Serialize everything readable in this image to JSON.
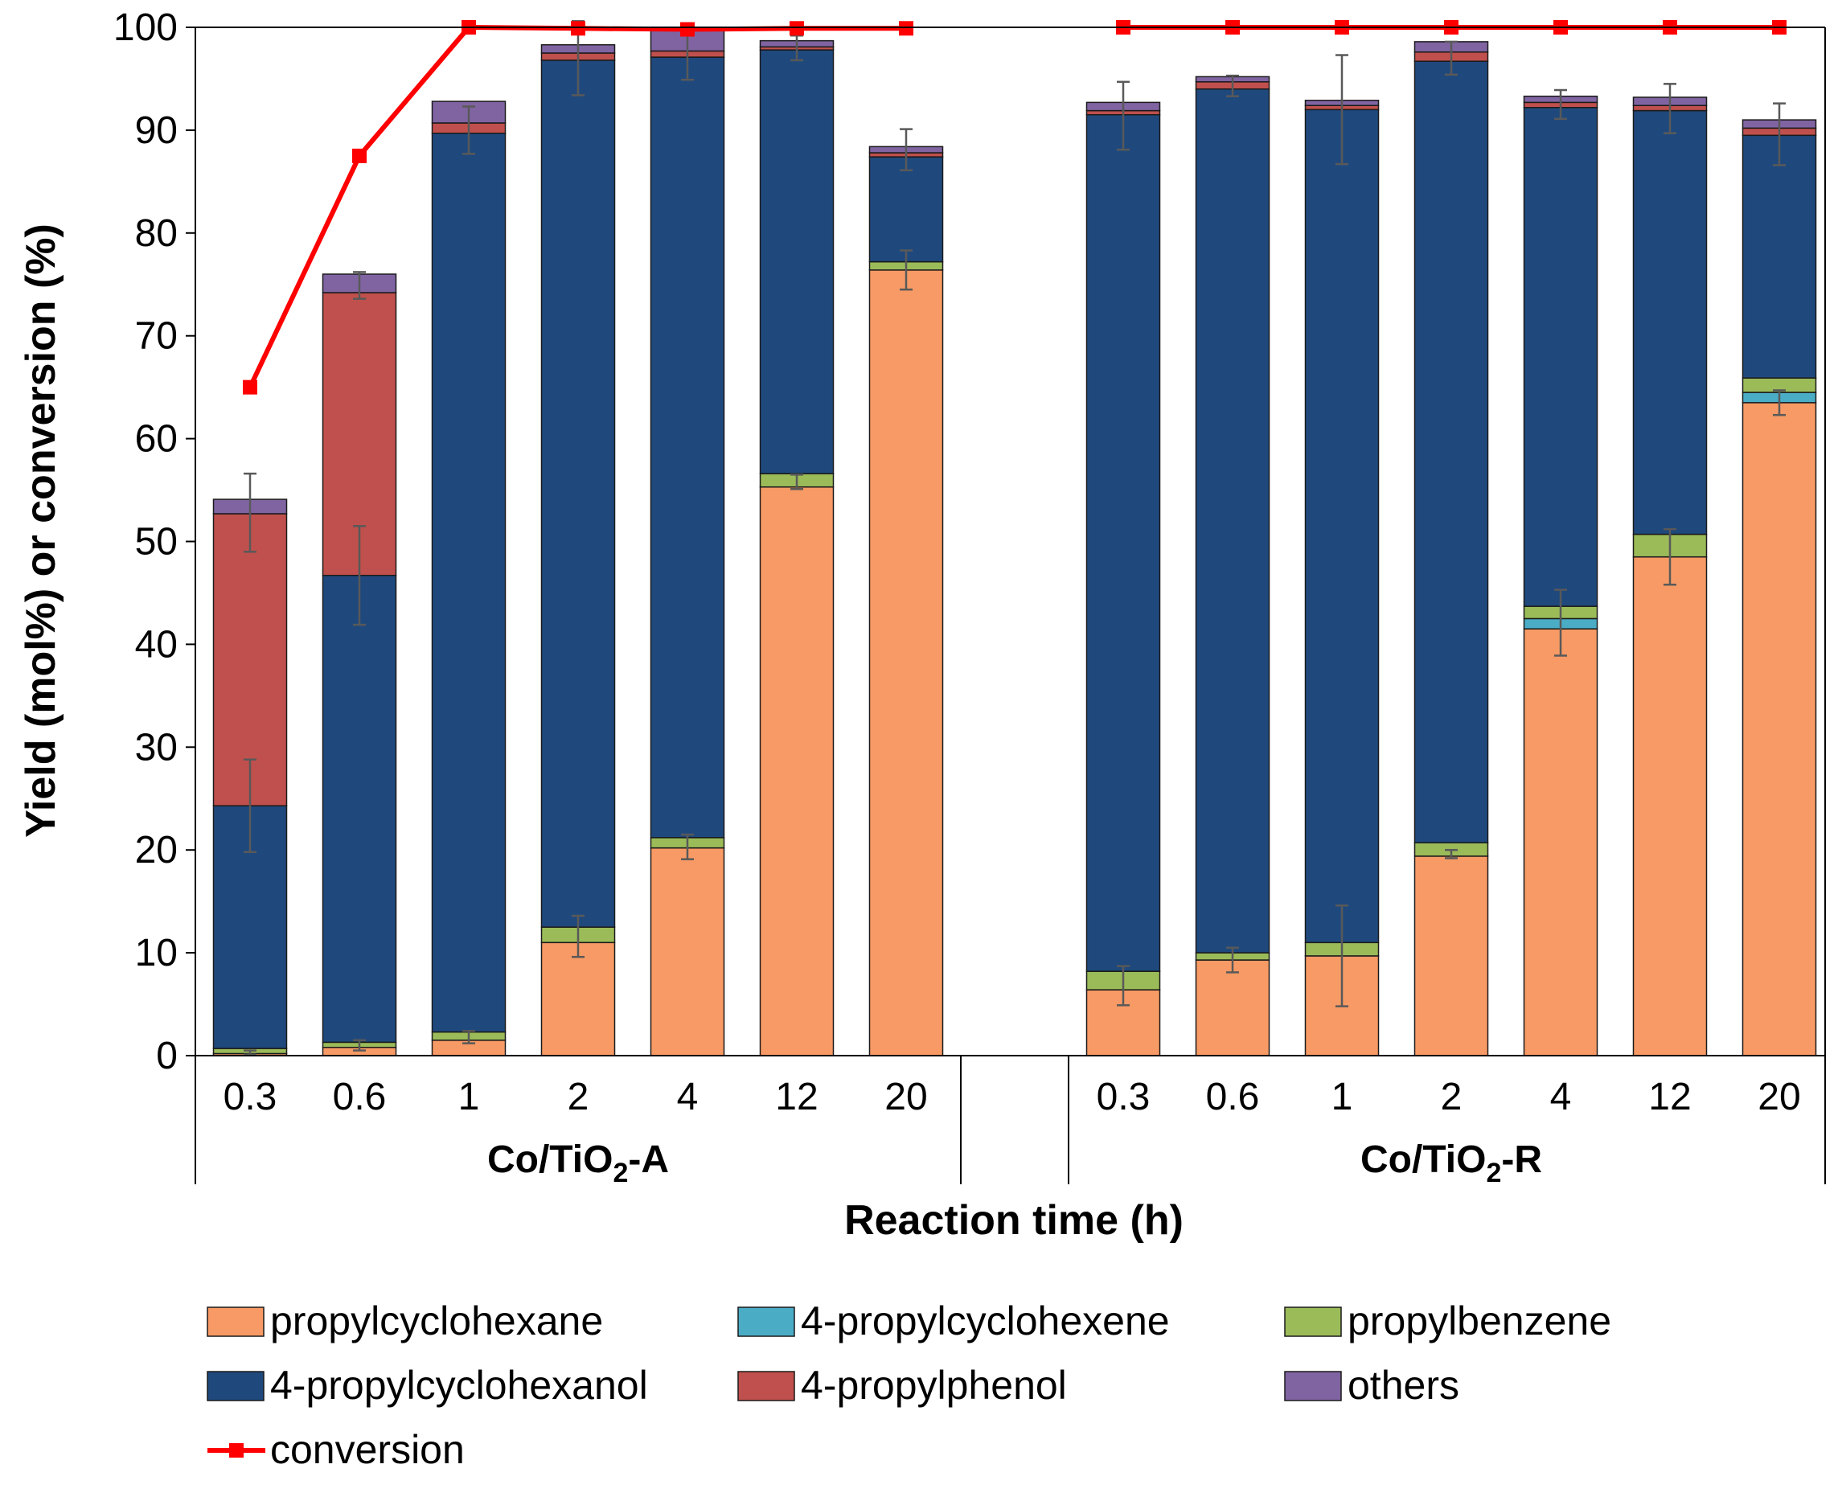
{
  "chart_data": {
    "type": "bar",
    "subtype": "stacked-bar-with-line",
    "ylabel": "Yield (mol%) or conversion (%)",
    "xlabel": "Reaction time (h)",
    "ylim": [
      0,
      100
    ],
    "yticks": [
      0,
      10,
      20,
      30,
      40,
      50,
      60,
      70,
      80,
      90,
      100
    ],
    "grid": false,
    "legend_position": "bottom",
    "groups": [
      {
        "label_main": "Co/TiO",
        "label_sub": "2",
        "label_suffix": "-A",
        "categories": [
          "0.3",
          "0.6",
          "1",
          "2",
          "4",
          "12",
          "20"
        ],
        "stacks": {
          "propylcyclohexane": [
            0.2,
            0.8,
            1.5,
            11.0,
            20.2,
            55.3,
            76.4
          ],
          "4-propylcyclohexene": [
            0.0,
            0.0,
            0.0,
            0.0,
            0.0,
            0.0,
            0.0
          ],
          "propylbenzene": [
            0.5,
            0.5,
            0.8,
            1.5,
            1.0,
            1.3,
            0.8
          ],
          "4-propylcyclohexanol": [
            23.6,
            45.4,
            87.4,
            84.3,
            75.9,
            41.2,
            10.2
          ],
          "4-propylphenol": [
            28.4,
            27.5,
            1.0,
            0.7,
            0.6,
            0.3,
            0.4
          ],
          "others": [
            1.4,
            1.8,
            2.1,
            0.8,
            2.0,
            0.6,
            0.6
          ]
        },
        "errorbars": [
          {
            "bar": 0,
            "y": 0.3,
            "err": 0.2
          },
          {
            "bar": 0,
            "y": 24.3,
            "err": 4.5
          },
          {
            "bar": 0,
            "y": 52.8,
            "err": 3.8
          },
          {
            "bar": 1,
            "y": 1.0,
            "err": 0.5
          },
          {
            "bar": 1,
            "y": 46.7,
            "err": 4.8
          },
          {
            "bar": 1,
            "y": 74.9,
            "err": 1.3
          },
          {
            "bar": 2,
            "y": 1.8,
            "err": 0.6
          },
          {
            "bar": 2,
            "y": 90.0,
            "err": 2.3
          },
          {
            "bar": 3,
            "y": 11.6,
            "err": 2.0
          },
          {
            "bar": 3,
            "y": 97.0,
            "err": 3.6
          },
          {
            "bar": 4,
            "y": 20.3,
            "err": 1.2
          },
          {
            "bar": 4,
            "y": 97.4,
            "err": 2.5
          },
          {
            "bar": 5,
            "y": 55.8,
            "err": 0.7
          },
          {
            "bar": 5,
            "y": 98.0,
            "err": 1.2
          },
          {
            "bar": 6,
            "y": 76.4,
            "err": 1.9
          },
          {
            "bar": 6,
            "y": 88.1,
            "err": 2.0
          }
        ],
        "conversion": [
          65.0,
          87.5,
          100.0,
          99.9,
          99.8,
          99.9,
          99.9
        ]
      },
      {
        "label_main": "Co/TiO",
        "label_sub": "2",
        "label_suffix": "-R",
        "categories": [
          "0.3",
          "0.6",
          "1",
          "2",
          "4",
          "12",
          "20"
        ],
        "stacks": {
          "propylcyclohexane": [
            6.4,
            9.3,
            9.7,
            19.4,
            41.5,
            48.5,
            63.5
          ],
          "4-propylcyclohexene": [
            0.0,
            0.0,
            0.0,
            0.0,
            1.0,
            0.0,
            1.0
          ],
          "propylbenzene": [
            1.8,
            0.7,
            1.3,
            1.3,
            1.2,
            2.2,
            1.4
          ],
          "4-propylcyclohexanol": [
            83.3,
            84.0,
            81.0,
            76.0,
            48.5,
            41.2,
            23.6
          ],
          "4-propylphenol": [
            0.4,
            0.7,
            0.4,
            0.9,
            0.5,
            0.5,
            0.7
          ],
          "others": [
            0.8,
            0.5,
            0.5,
            1.0,
            0.6,
            0.8,
            0.8
          ]
        },
        "errorbars": [
          {
            "bar": 0,
            "y": 6.8,
            "err": 1.9
          },
          {
            "bar": 0,
            "y": 91.4,
            "err": 3.3
          },
          {
            "bar": 1,
            "y": 9.3,
            "err": 1.2
          },
          {
            "bar": 1,
            "y": 94.3,
            "err": 1.0
          },
          {
            "bar": 2,
            "y": 9.7,
            "err": 4.9
          },
          {
            "bar": 2,
            "y": 92.0,
            "err": 5.3
          },
          {
            "bar": 3,
            "y": 19.6,
            "err": 0.4
          },
          {
            "bar": 3,
            "y": 97.0,
            "err": 1.6
          },
          {
            "bar": 4,
            "y": 42.1,
            "err": 3.2
          },
          {
            "bar": 4,
            "y": 92.5,
            "err": 1.4
          },
          {
            "bar": 5,
            "y": 48.5,
            "err": 2.7
          },
          {
            "bar": 5,
            "y": 92.1,
            "err": 2.4
          },
          {
            "bar": 6,
            "y": 63.5,
            "err": 1.2
          },
          {
            "bar": 6,
            "y": 89.6,
            "err": 3.0
          }
        ],
        "conversion": [
          100.0,
          100.0,
          100.0,
          100.0,
          100.0,
          100.0,
          100.0
        ]
      }
    ],
    "series": [
      {
        "key": "propylcyclohexane",
        "name": "propylcyclohexane",
        "color": "#F79A65"
      },
      {
        "key": "4-propylcyclohexene",
        "name": "4-propylcyclohexene",
        "color": "#4BACC6"
      },
      {
        "key": "propylbenzene",
        "name": "propylbenzene",
        "color": "#9BBB59"
      },
      {
        "key": "4-propylcyclohexanol",
        "name": "4-propylcyclohexanol",
        "color": "#1F497D"
      },
      {
        "key": "4-propylphenol",
        "name": "4-propylphenol",
        "color": "#C0504D"
      },
      {
        "key": "others",
        "name": "others",
        "color": "#8064A2"
      }
    ],
    "line_series": {
      "name": "conversion",
      "color": "#FF0000"
    },
    "errorbar_color": "#595959"
  }
}
